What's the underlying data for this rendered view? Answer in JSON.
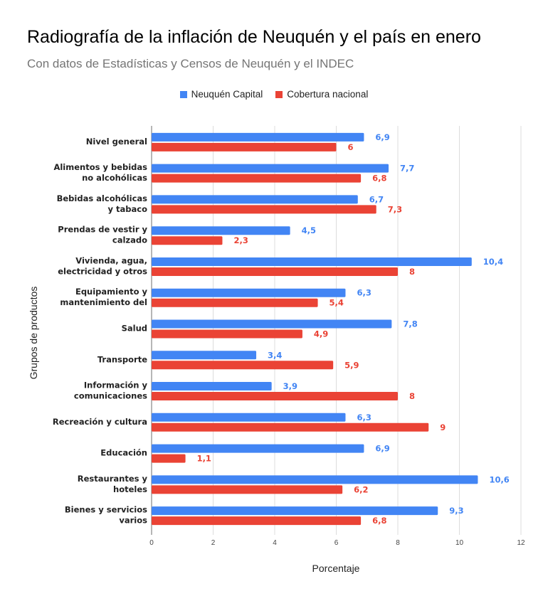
{
  "chart_data": {
    "type": "bar",
    "orientation": "horizontal",
    "title": "Radiografía de la inflación de Neuquén y el país en enero",
    "subtitle": "Con datos de Estadísticas y Censos de Neuquén y el INDEC",
    "xlabel": "Porcentaje",
    "ylabel": "Grupos de productos",
    "xlim": [
      0,
      12
    ],
    "xticks": [
      "0",
      "2",
      "4",
      "6",
      "8",
      "10",
      "12"
    ],
    "grid": true,
    "legend_position": "top",
    "categories": [
      [
        "Nivel general"
      ],
      [
        "Alimentos y bebidas",
        "no alcohólicas"
      ],
      [
        "Bebidas alcohólicas",
        "y tabaco"
      ],
      [
        "Prendas de vestir y",
        "calzado"
      ],
      [
        "Vivienda, agua,",
        "electricidad y otros"
      ],
      [
        "Equipamiento y",
        "mantenimiento del"
      ],
      [
        "Salud"
      ],
      [
        "Transporte"
      ],
      [
        "Información y",
        "comunicaciones"
      ],
      [
        "Recreación y cultura"
      ],
      [
        "Educación"
      ],
      [
        "Restaurantes y",
        "hoteles"
      ],
      [
        "Bienes y servicios",
        "varios"
      ]
    ],
    "series": [
      {
        "name": "Neuquén Capital",
        "color": "#4285f4",
        "values": [
          6.9,
          7.7,
          6.7,
          4.5,
          10.4,
          6.3,
          7.8,
          3.4,
          3.9,
          6.3,
          6.9,
          10.6,
          9.3
        ],
        "labels": [
          "6,9",
          "7,7",
          "6,7",
          "4,5",
          "10,4",
          "6,3",
          "7,8",
          "3,4",
          "3,9",
          "6,3",
          "6,9",
          "10,6",
          "9,3"
        ]
      },
      {
        "name": "Cobertura nacional",
        "color": "#ea4335",
        "values": [
          6,
          6.8,
          7.3,
          2.3,
          8,
          5.4,
          4.9,
          5.9,
          8,
          9,
          1.1,
          6.2,
          6.8
        ],
        "labels": [
          "6",
          "6,8",
          "7,3",
          "2,3",
          "8",
          "5,4",
          "4,9",
          "5,9",
          "8",
          "9",
          "1,1",
          "6,2",
          "6,8"
        ]
      }
    ]
  }
}
